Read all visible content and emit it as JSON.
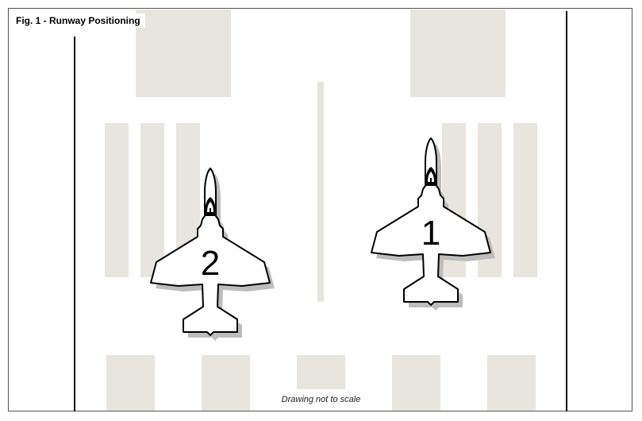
{
  "figure": {
    "title": "Fig. 1 - Runway Positioning",
    "caption": "Drawing not to scale"
  },
  "aircraft": [
    {
      "label": "2"
    },
    {
      "label": "1"
    }
  ],
  "colors": {
    "marking": "#e8e5df",
    "edge_line": "#000000",
    "aircraft_fill": "#ffffff",
    "aircraft_stroke": "#000000",
    "shadow": "#bdbdbd"
  }
}
